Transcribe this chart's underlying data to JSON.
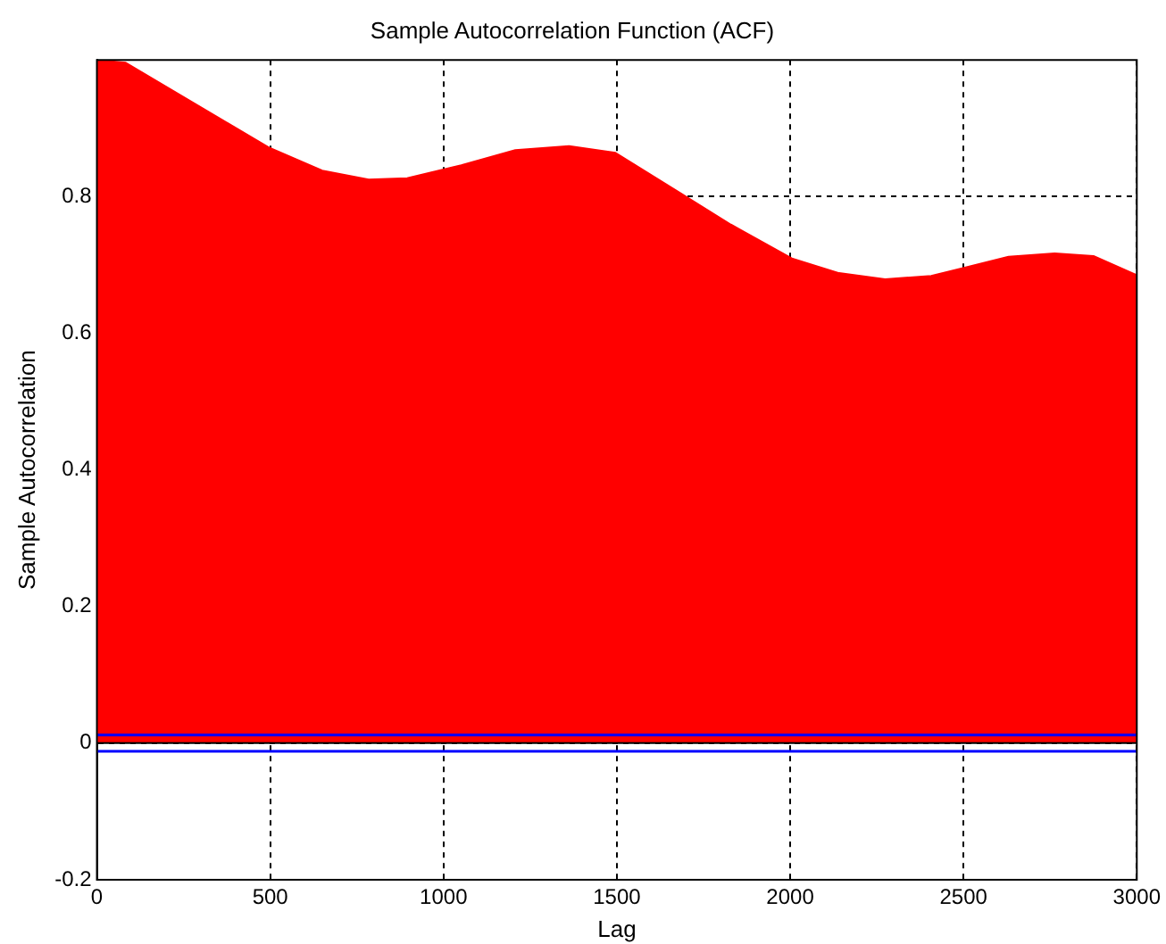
{
  "chart_data": {
    "type": "area",
    "title": "Sample Autocorrelation Function (ACF)",
    "xlabel": "Lag",
    "ylabel": "Sample Autocorrelation",
    "x": [
      0,
      83,
      272,
      495,
      650,
      784,
      895,
      1051,
      1207,
      1362,
      1496,
      1696,
      1829,
      2007,
      2141,
      2274,
      2407,
      2496,
      2630,
      2763,
      2875,
      3000
    ],
    "series": [
      {
        "color": "#ff0000",
        "values": [
          1.0,
          0.996,
          0.939,
          0.872,
          0.838,
          0.825,
          0.827,
          0.846,
          0.868,
          0.874,
          0.864,
          0.801,
          0.759,
          0.709,
          0.688,
          0.679,
          0.684,
          0.695,
          0.712,
          0.717,
          0.713,
          0.685
        ]
      }
    ],
    "xlim": [
      0,
      3000
    ],
    "xticks": [
      0,
      500,
      1000,
      1500,
      2000,
      2500,
      3000
    ],
    "ylim": [
      -0.2,
      1
    ],
    "yticks": [
      -0.2,
      0,
      0.2,
      0.4,
      0.6,
      0.8
    ],
    "ref_lines": [
      {
        "axis": "y",
        "value": 0.012,
        "color": "#0000ff"
      },
      {
        "axis": "y",
        "value": -0.012,
        "color": "#0000ff"
      }
    ],
    "grid": true,
    "legend": false
  }
}
